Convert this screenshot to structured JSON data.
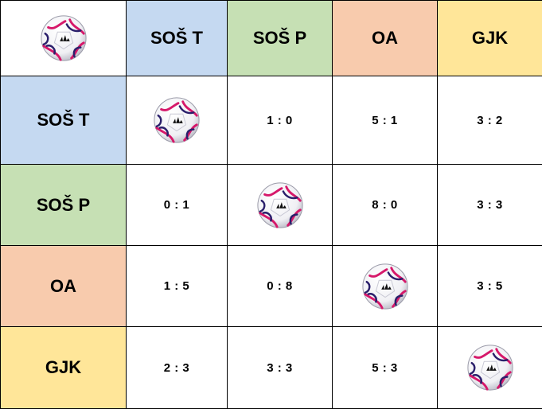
{
  "columns": [
    "SOŠ T",
    "SOŠ P",
    "OA",
    "GJK"
  ],
  "rows": [
    {
      "team": "SOŠ T",
      "scores": [
        "",
        "1 : 0",
        "5 : 1",
        "3 : 2"
      ]
    },
    {
      "team": "SOŠ P",
      "scores": [
        "0 : 1",
        "",
        "8 : 0",
        "3 : 3"
      ]
    },
    {
      "team": "OA",
      "scores": [
        "1 : 5",
        "0 : 8",
        "",
        "3 : 5"
      ]
    },
    {
      "team": "GJK",
      "scores": [
        "2 : 3",
        "3 : 3",
        "5 : 3",
        ""
      ]
    }
  ],
  "colors": {
    "SOŠ T": "#c5d9f1",
    "SOŠ P": "#c6e0b4",
    "OA": "#f8cbad",
    "GJK": "#ffe699"
  },
  "icons": {
    "corner": "football-icon",
    "diagonal": "football-icon"
  }
}
